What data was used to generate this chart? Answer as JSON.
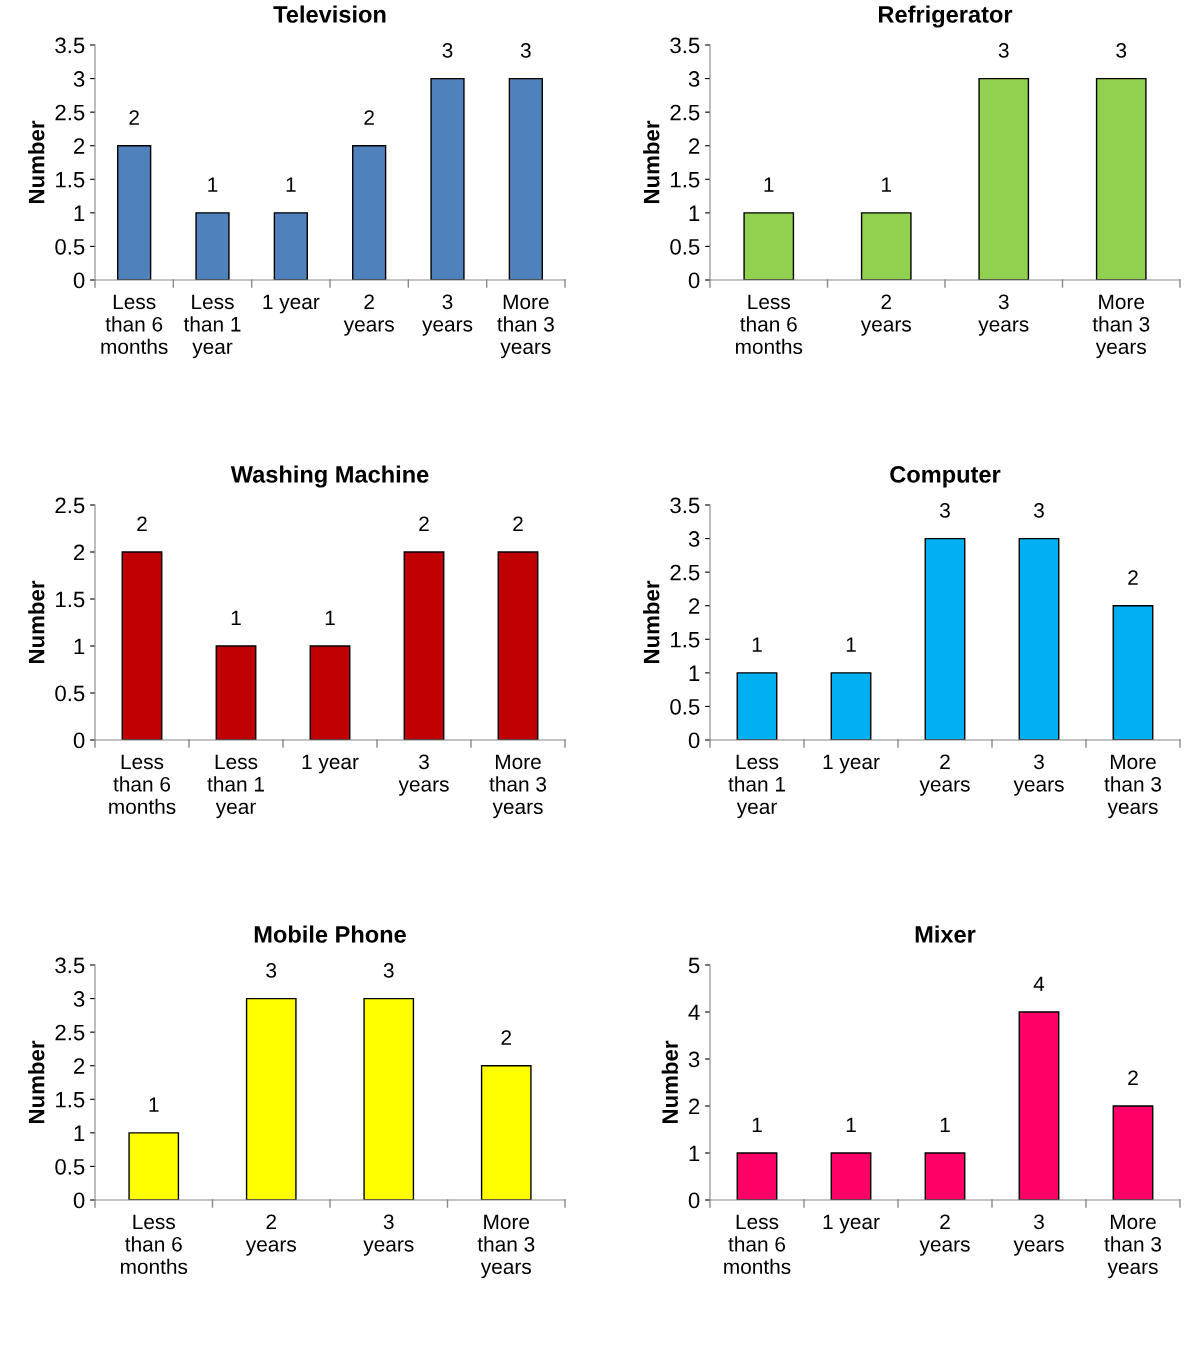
{
  "chart_data": [
    {
      "type": "bar",
      "title": "Television",
      "ylabel": "Number",
      "categories": [
        "Less than 6 months",
        "Less than 1 year",
        "1 year",
        "2 years",
        "3 years",
        "More than 3 years"
      ],
      "values": [
        2,
        1,
        1,
        2,
        3,
        3
      ],
      "color": "#4f81bd",
      "ylim": [
        0,
        3.5
      ],
      "yticks": [
        0,
        0.5,
        1,
        1.5,
        2,
        2.5,
        3,
        3.5
      ],
      "data_labels": true,
      "grid": false,
      "legend": false
    },
    {
      "type": "bar",
      "title": "Refrigerator",
      "ylabel": "Number",
      "categories": [
        "Less than 6 months",
        "2 years",
        "3 years",
        "More than 3 years"
      ],
      "values": [
        1,
        1,
        3,
        3
      ],
      "color": "#92d050",
      "ylim": [
        0,
        3.5
      ],
      "yticks": [
        0,
        0.5,
        1,
        1.5,
        2,
        2.5,
        3,
        3.5
      ],
      "data_labels": true,
      "grid": false,
      "legend": false
    },
    {
      "type": "bar",
      "title": "Washing Machine",
      "ylabel": "Number",
      "categories": [
        "Less than 6 months",
        "Less than 1 year",
        "1 year",
        "3 years",
        "More than 3 years"
      ],
      "values": [
        2,
        1,
        1,
        2,
        2
      ],
      "color": "#c00000",
      "ylim": [
        0,
        2.5
      ],
      "yticks": [
        0,
        0.5,
        1,
        1.5,
        2,
        2.5
      ],
      "data_labels": true,
      "grid": false,
      "legend": false
    },
    {
      "type": "bar",
      "title": "Computer",
      "ylabel": "Number",
      "categories": [
        "Less than 1 year",
        "1 year",
        "2 years",
        "3 years",
        "More than 3 years"
      ],
      "values": [
        1,
        1,
        3,
        3,
        2
      ],
      "color": "#00b0f0",
      "ylim": [
        0,
        3.5
      ],
      "yticks": [
        0,
        0.5,
        1,
        1.5,
        2,
        2.5,
        3,
        3.5
      ],
      "data_labels": true,
      "grid": false,
      "legend": false
    },
    {
      "type": "bar",
      "title": "Mobile Phone",
      "ylabel": "Number",
      "categories": [
        "Less than 6 months",
        "2 years",
        "3 years",
        "More than 3 years"
      ],
      "values": [
        1,
        3,
        3,
        2
      ],
      "color": "#ffff00",
      "ylim": [
        0,
        3.5
      ],
      "yticks": [
        0,
        0.5,
        1,
        1.5,
        2,
        2.5,
        3,
        3.5
      ],
      "data_labels": true,
      "grid": false,
      "legend": false
    },
    {
      "type": "bar",
      "title": "Mixer",
      "ylabel": "Number",
      "categories": [
        "Less than 6 months",
        "1 year",
        "2 years",
        "3 years",
        "More than 3 years"
      ],
      "values": [
        1,
        1,
        1,
        4,
        2
      ],
      "color": "#ff0066",
      "ylim": [
        0,
        5
      ],
      "yticks": [
        0,
        1,
        2,
        3,
        4,
        5
      ],
      "data_labels": true,
      "grid": false,
      "legend": false
    }
  ]
}
